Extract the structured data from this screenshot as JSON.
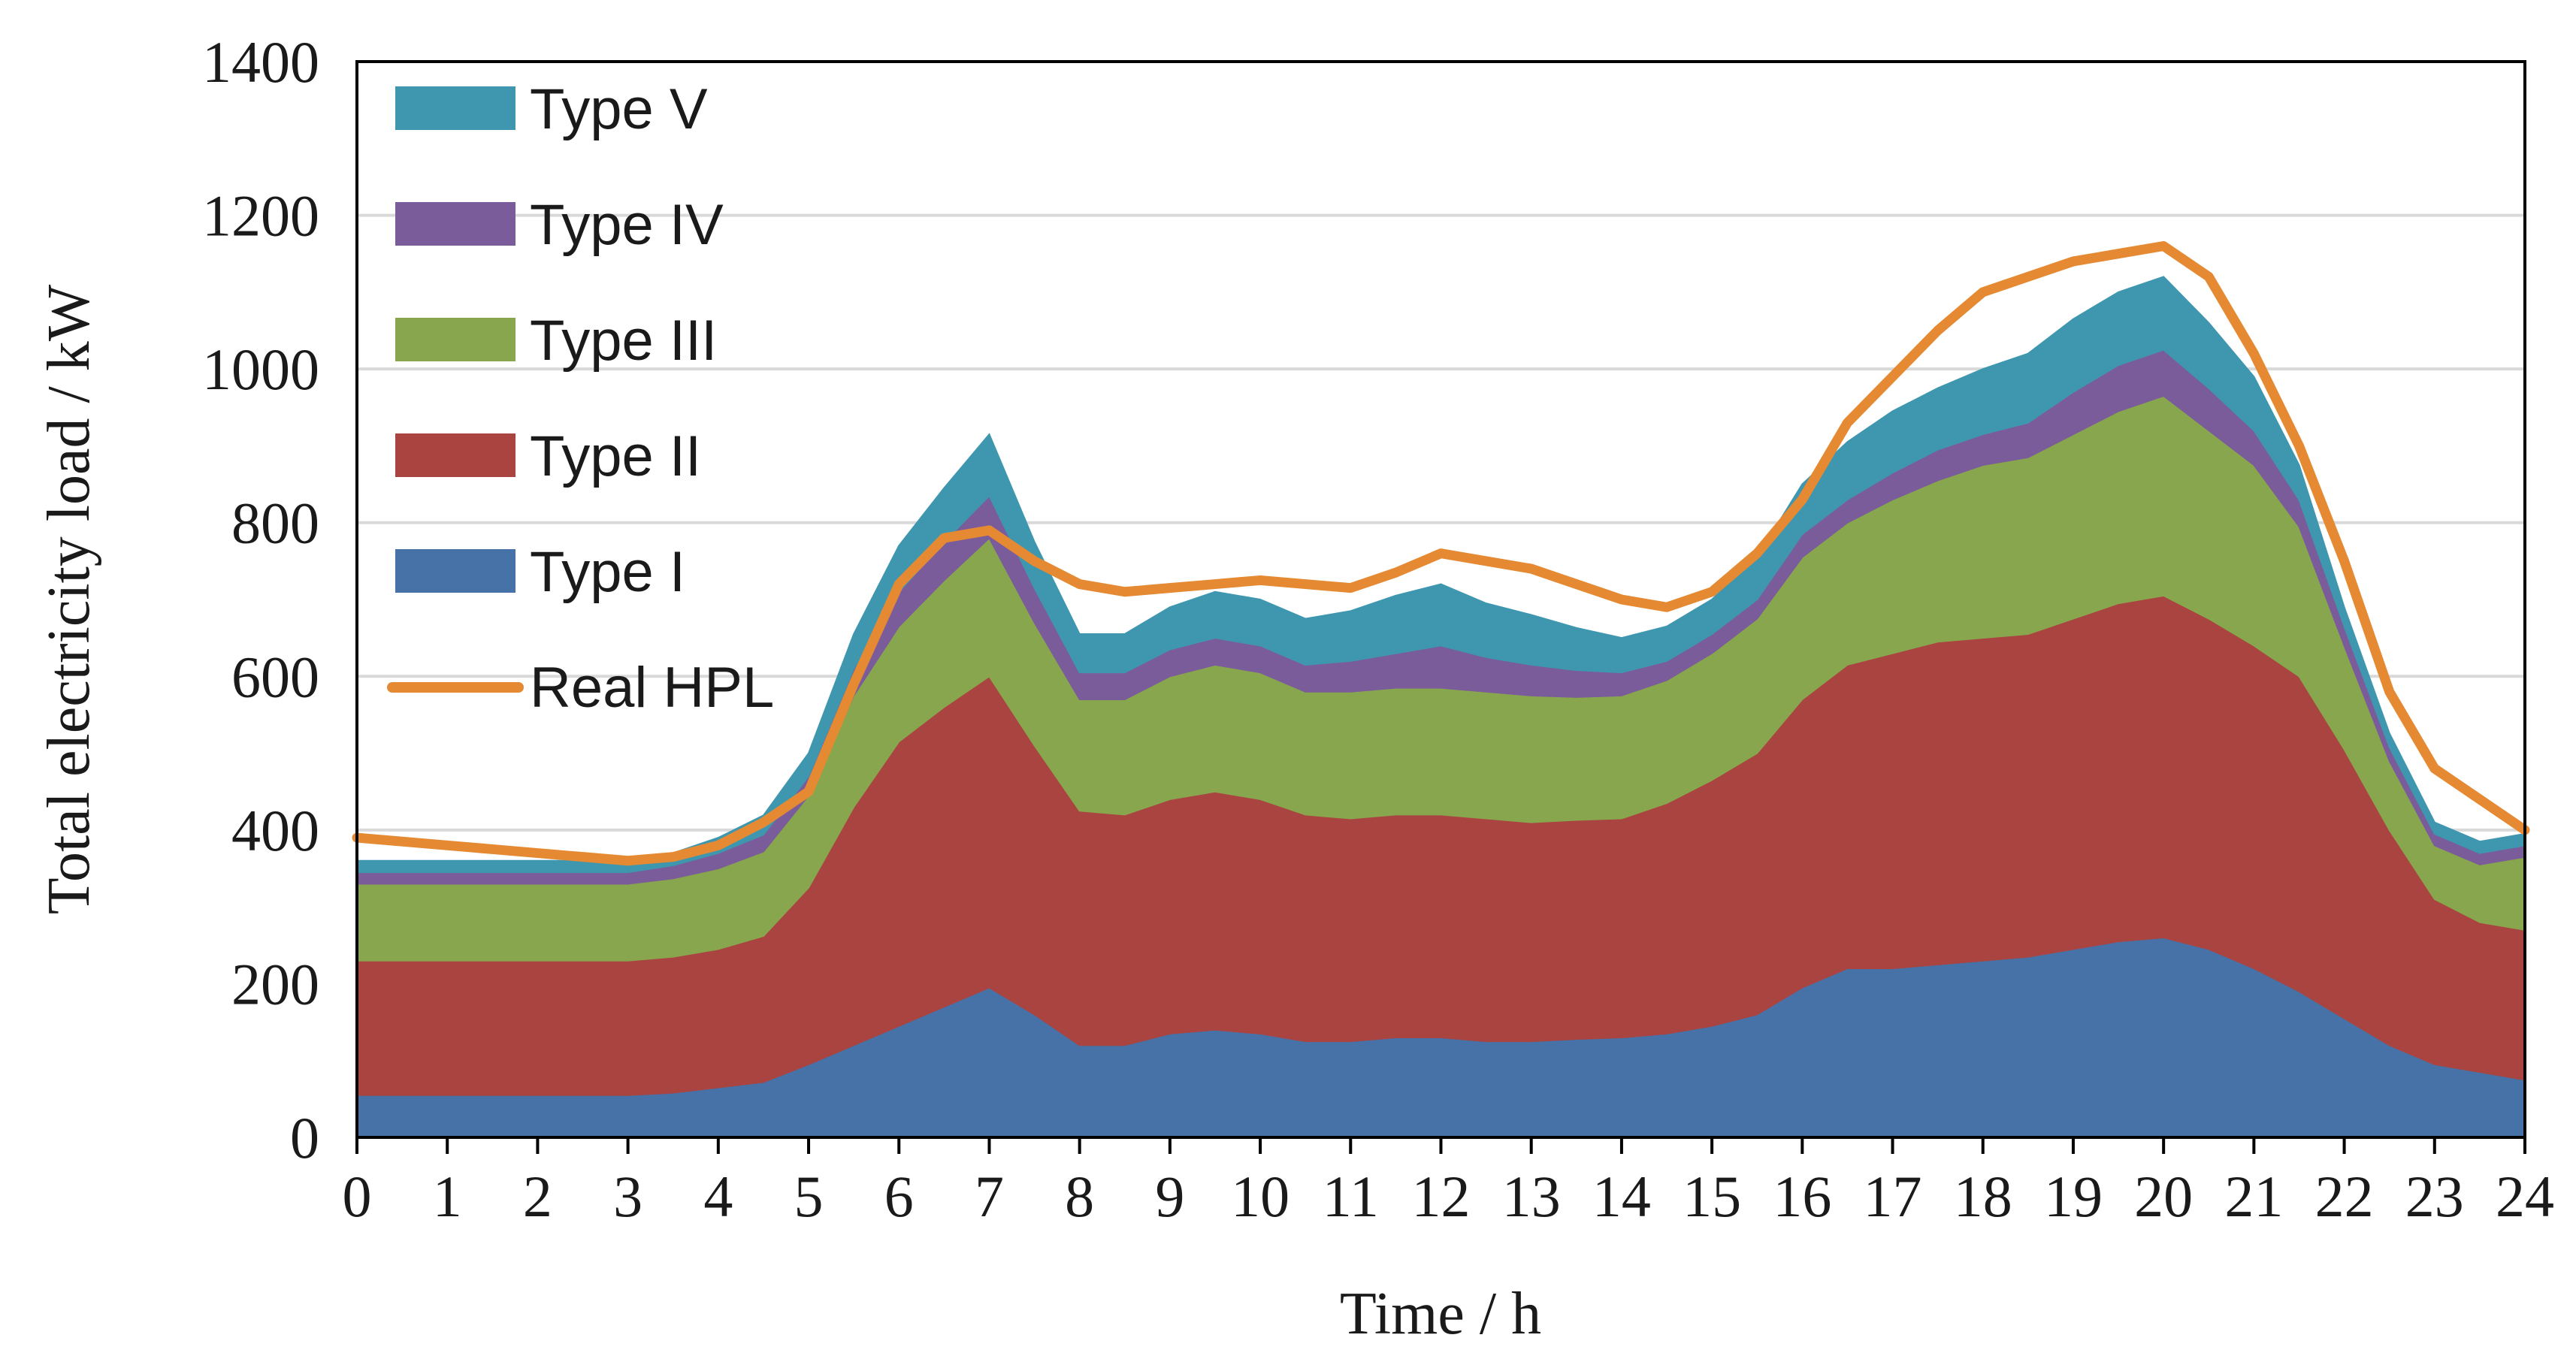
{
  "chart_data": {
    "type": "area",
    "stacked": true,
    "xlabel": "Time / h",
    "ylabel": "Total electricity load / kW",
    "xlim": [
      0,
      24
    ],
    "ylim": [
      0,
      1400
    ],
    "x_ticks": [
      "0",
      "1",
      "2",
      "3",
      "4",
      "5",
      "6",
      "7",
      "8",
      "9",
      "10",
      "11",
      "12",
      "13",
      "14",
      "15",
      "16",
      "17",
      "18",
      "19",
      "20",
      "21",
      "22",
      "23",
      "24"
    ],
    "y_ticks": [
      "0",
      "200",
      "400",
      "600",
      "800",
      "1000",
      "1200",
      "1400"
    ],
    "grid": true,
    "legend_position": "top-left",
    "x": [
      0,
      0.5,
      1,
      1.5,
      2,
      2.5,
      3,
      3.5,
      4,
      4.5,
      5,
      5.5,
      6,
      6.5,
      7,
      7.5,
      8,
      8.5,
      9,
      9.5,
      10,
      10.5,
      11,
      11.5,
      12,
      12.5,
      13,
      13.5,
      14,
      14.5,
      15,
      15.5,
      16,
      16.5,
      17,
      17.5,
      18,
      18.5,
      19,
      19.5,
      20,
      20.5,
      21,
      21.5,
      22,
      22.5,
      23,
      23.5,
      24
    ],
    "series": [
      {
        "name": "Type I",
        "color": "#4672A8",
        "values": [
          55,
          55,
          55,
          55,
          55,
          55,
          55,
          58,
          65,
          72,
          95,
          120,
          145,
          170,
          195,
          160,
          120,
          120,
          135,
          140,
          135,
          125,
          125,
          130,
          130,
          125,
          125,
          128,
          130,
          135,
          145,
          160,
          195,
          220,
          220,
          225,
          230,
          235,
          245,
          255,
          260,
          245,
          220,
          190,
          155,
          120,
          95,
          85,
          75
        ]
      },
      {
        "name": "Type II",
        "color": "#A94441",
        "values": [
          175,
          175,
          175,
          175,
          175,
          175,
          175,
          177,
          180,
          190,
          230,
          310,
          370,
          390,
          405,
          350,
          305,
          300,
          305,
          310,
          305,
          295,
          290,
          290,
          290,
          290,
          285,
          285,
          285,
          300,
          320,
          340,
          375,
          395,
          410,
          420,
          420,
          420,
          430,
          440,
          445,
          430,
          420,
          410,
          350,
          280,
          215,
          195,
          195
        ]
      },
      {
        "name": "Type III",
        "color": "#88A64E",
        "values": [
          100,
          100,
          100,
          100,
          100,
          100,
          100,
          102,
          105,
          110,
          120,
          145,
          150,
          165,
          180,
          160,
          145,
          150,
          160,
          165,
          165,
          160,
          165,
          165,
          165,
          165,
          165,
          160,
          160,
          160,
          165,
          175,
          185,
          185,
          200,
          210,
          225,
          230,
          240,
          250,
          260,
          245,
          235,
          195,
          135,
          90,
          70,
          75,
          95
        ]
      },
      {
        "name": "Type IV",
        "color": "#7B5C9A",
        "values": [
          15,
          15,
          15,
          15,
          15,
          15,
          15,
          17,
          20,
          22,
          25,
          35,
          45,
          50,
          55,
          45,
          35,
          35,
          35,
          35,
          35,
          35,
          40,
          45,
          55,
          45,
          40,
          35,
          30,
          25,
          25,
          25,
          30,
          30,
          35,
          40,
          40,
          45,
          55,
          60,
          60,
          55,
          45,
          35,
          25,
          18,
          15,
          15,
          15
        ]
      },
      {
        "name": "Type V",
        "color": "#3E97AF",
        "values": [
          15,
          15,
          15,
          15,
          15,
          15,
          15,
          16,
          20,
          25,
          30,
          45,
          60,
          70,
          80,
          60,
          50,
          50,
          55,
          60,
          60,
          60,
          65,
          75,
          80,
          70,
          65,
          55,
          45,
          45,
          45,
          55,
          65,
          75,
          80,
          80,
          85,
          90,
          95,
          95,
          95,
          85,
          70,
          45,
          25,
          18,
          15,
          15,
          15
        ]
      },
      {
        "name": "Real HPL",
        "type": "line",
        "color": "#E58A32",
        "values": [
          390,
          385,
          380,
          375,
          370,
          365,
          360,
          365,
          380,
          410,
          450,
          590,
          720,
          780,
          790,
          750,
          720,
          710,
          715,
          720,
          725,
          720,
          715,
          735,
          760,
          750,
          740,
          720,
          700,
          690,
          710,
          760,
          830,
          930,
          990,
          1050,
          1100,
          1120,
          1140,
          1150,
          1160,
          1120,
          1020,
          900,
          750,
          580,
          480,
          440,
          400
        ]
      }
    ]
  }
}
